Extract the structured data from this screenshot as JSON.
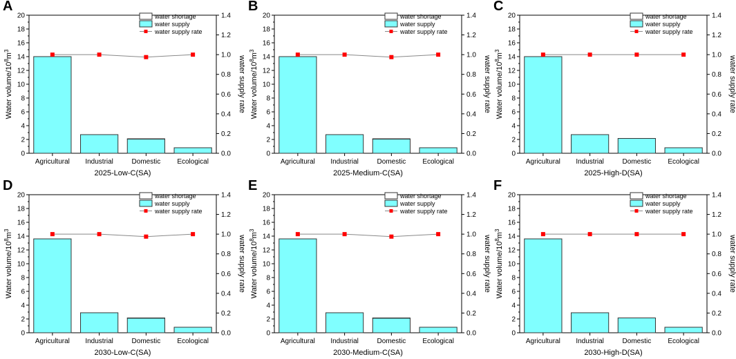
{
  "colors": {
    "supply": "#80ffff",
    "bar_stroke": "#333333",
    "rate_marker": "#ff0000",
    "rate_line": "#888888",
    "shortage": "#ffffff"
  },
  "chart_data": [
    {
      "type": "bar",
      "panel_label": "A",
      "title": "2025-Low-C(SA)",
      "categories": [
        "Agricultural",
        "Industrial",
        "Domestic",
        "Ecological"
      ],
      "ylabel": "Water volume/10",
      "ylabel_sup1": "8",
      "ylabel_mid": "m",
      "ylabel_sup2": "3",
      "ylabel_right": "water supply rate",
      "ylim": [
        0,
        20
      ],
      "ylim_right": [
        0,
        1.4
      ],
      "yticks": [
        "0",
        "2",
        "4",
        "6",
        "8",
        "10",
        "12",
        "14",
        "16",
        "18",
        "20"
      ],
      "yticks_right": [
        "0.0",
        "0.2",
        "0.4",
        "0.6",
        "0.8",
        "1.0",
        "1.2",
        "1.4"
      ],
      "legend": [
        "water shortage",
        "water supply",
        "water supply rate"
      ],
      "series": [
        {
          "name": "water shortage",
          "values": [
            0.0,
            0.0,
            0.05,
            0.0
          ]
        },
        {
          "name": "water supply",
          "values": [
            14.0,
            2.7,
            2.05,
            0.8
          ]
        },
        {
          "name": "water supply rate",
          "values": [
            1.0,
            1.0,
            0.975,
            1.0
          ]
        }
      ]
    },
    {
      "type": "bar",
      "panel_label": "B",
      "title": "2025-Medium-C(SA)",
      "categories": [
        "Agricultural",
        "Industrial",
        "Domestic",
        "Ecological"
      ],
      "ylabel": "Water volume/10",
      "ylabel_sup1": "8",
      "ylabel_mid": "m",
      "ylabel_sup2": "3",
      "ylabel_right": "water supply rate",
      "ylim": [
        0,
        20
      ],
      "ylim_right": [
        0,
        1.4
      ],
      "yticks": [
        "0",
        "2",
        "4",
        "6",
        "8",
        "10",
        "12",
        "14",
        "16",
        "18",
        "20"
      ],
      "yticks_right": [
        "0.0",
        "0.2",
        "0.4",
        "0.6",
        "0.8",
        "1.0",
        "1.2",
        "1.4"
      ],
      "legend": [
        "water shortage",
        "water supply",
        "water supply rate"
      ],
      "series": [
        {
          "name": "water shortage",
          "values": [
            0.0,
            0.0,
            0.05,
            0.0
          ]
        },
        {
          "name": "water supply",
          "values": [
            14.0,
            2.7,
            2.05,
            0.8
          ]
        },
        {
          "name": "water supply rate",
          "values": [
            1.0,
            1.0,
            0.975,
            1.0
          ]
        }
      ]
    },
    {
      "type": "bar",
      "panel_label": "C",
      "title": "2025-High-D(SA)",
      "categories": [
        "Agricultural",
        "Industrial",
        "Domestic",
        "Ecological"
      ],
      "ylabel": "Water volume/10",
      "ylabel_sup1": "8",
      "ylabel_mid": "m",
      "ylabel_sup2": "3",
      "ylabel_right": "water supply rate",
      "ylim": [
        0,
        20
      ],
      "ylim_right": [
        0,
        1.4
      ],
      "yticks": [
        "0",
        "2",
        "4",
        "6",
        "8",
        "10",
        "12",
        "14",
        "16",
        "18",
        "20"
      ],
      "yticks_right": [
        "0.0",
        "0.2",
        "0.4",
        "0.6",
        "0.8",
        "1.0",
        "1.2",
        "1.4"
      ],
      "legend": [
        "water shortage",
        "water supply",
        "water supply rate"
      ],
      "series": [
        {
          "name": "water shortage",
          "values": [
            0.0,
            0.0,
            0.0,
            0.0
          ]
        },
        {
          "name": "water supply",
          "values": [
            14.0,
            2.7,
            2.15,
            0.8
          ]
        },
        {
          "name": "water supply rate",
          "values": [
            1.0,
            1.0,
            1.0,
            1.0
          ]
        }
      ]
    },
    {
      "type": "bar",
      "panel_label": "D",
      "title": "2030-Low-C(SA)",
      "categories": [
        "Agricultural",
        "Industrial",
        "Domestic",
        "Ecological"
      ],
      "ylabel": "Water volume/10",
      "ylabel_sup1": "8",
      "ylabel_mid": "m",
      "ylabel_sup2": "3",
      "ylabel_right": "water supply rate",
      "ylim": [
        0,
        20
      ],
      "ylim_right": [
        0,
        1.4
      ],
      "yticks": [
        "0",
        "2",
        "4",
        "6",
        "8",
        "10",
        "12",
        "14",
        "16",
        "18",
        "20"
      ],
      "yticks_right": [
        "0.0",
        "0.2",
        "0.4",
        "0.6",
        "0.8",
        "1.0",
        "1.2",
        "1.4"
      ],
      "legend": [
        "water shortage",
        "water supply",
        "water supply rate"
      ],
      "series": [
        {
          "name": "water shortage",
          "values": [
            0.0,
            0.0,
            0.05,
            0.0
          ]
        },
        {
          "name": "water supply",
          "values": [
            13.6,
            2.9,
            2.1,
            0.8
          ]
        },
        {
          "name": "water supply rate",
          "values": [
            1.0,
            1.0,
            0.975,
            1.0
          ]
        }
      ]
    },
    {
      "type": "bar",
      "panel_label": "E",
      "title": "2030-Medium-C(SA)",
      "categories": [
        "Agricultural",
        "Industrial",
        "Domestic",
        "Ecological"
      ],
      "ylabel": "Water volume/10",
      "ylabel_sup1": "8",
      "ylabel_mid": "m",
      "ylabel_sup2": "3",
      "ylabel_right": "water supply rate",
      "ylim": [
        0,
        20
      ],
      "ylim_right": [
        0,
        1.4
      ],
      "yticks": [
        "0",
        "2",
        "4",
        "6",
        "8",
        "10",
        "12",
        "14",
        "16",
        "18",
        "20"
      ],
      "yticks_right": [
        "0.0",
        "0.2",
        "0.4",
        "0.6",
        "0.8",
        "1.0",
        "1.2",
        "1.4"
      ],
      "legend": [
        "water shortage",
        "water supply",
        "water supply rate"
      ],
      "series": [
        {
          "name": "water shortage",
          "values": [
            0.0,
            0.0,
            0.05,
            0.0
          ]
        },
        {
          "name": "water supply",
          "values": [
            13.6,
            2.9,
            2.1,
            0.8
          ]
        },
        {
          "name": "water supply rate",
          "values": [
            1.0,
            1.0,
            0.975,
            1.0
          ]
        }
      ]
    },
    {
      "type": "bar",
      "panel_label": "F",
      "title": "2030-High-D(SA)",
      "categories": [
        "Agricultural",
        "Industrial",
        "Domestic",
        "Ecological"
      ],
      "ylabel": "Water volume/10",
      "ylabel_sup1": "8",
      "ylabel_mid": "m",
      "ylabel_sup2": "3",
      "ylabel_right": "water supply rate",
      "ylim": [
        0,
        20
      ],
      "ylim_right": [
        0,
        1.4
      ],
      "yticks": [
        "0",
        "2",
        "4",
        "6",
        "8",
        "10",
        "12",
        "14",
        "16",
        "18",
        "20"
      ],
      "yticks_right": [
        "0.0",
        "0.2",
        "0.4",
        "0.6",
        "0.8",
        "1.0",
        "1.2",
        "1.4"
      ],
      "legend": [
        "water shortage",
        "water supply",
        "water supply rate"
      ],
      "series": [
        {
          "name": "water shortage",
          "values": [
            0.0,
            0.0,
            0.0,
            0.0
          ]
        },
        {
          "name": "water supply",
          "values": [
            13.6,
            2.9,
            2.15,
            0.8
          ]
        },
        {
          "name": "water supply rate",
          "values": [
            1.0,
            1.0,
            1.0,
            1.0
          ]
        }
      ]
    }
  ]
}
